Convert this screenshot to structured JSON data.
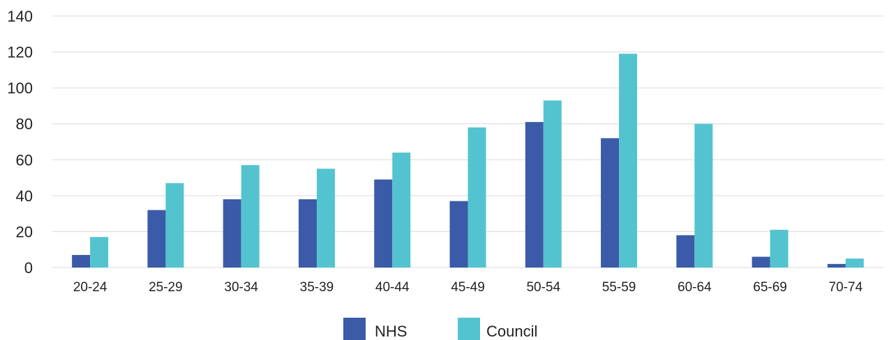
{
  "chart_data": {
    "type": "bar",
    "categories": [
      "20-24",
      "25-29",
      "30-34",
      "35-39",
      "40-44",
      "45-49",
      "50-54",
      "55-59",
      "60-64",
      "65-69",
      "70-74"
    ],
    "series": [
      {
        "name": "NHS",
        "color": "#3b5ba9",
        "values": [
          7,
          32,
          38,
          38,
          49,
          37,
          81,
          72,
          18,
          6,
          2
        ]
      },
      {
        "name": "Council",
        "color": "#53c4cf",
        "values": [
          17,
          47,
          57,
          55,
          64,
          78,
          93,
          119,
          80,
          21,
          5
        ]
      }
    ],
    "ylim": [
      0,
      140
    ],
    "yticks": [
      0,
      20,
      40,
      60,
      80,
      100,
      120,
      140
    ],
    "grid": true,
    "legend_position": "bottom"
  }
}
